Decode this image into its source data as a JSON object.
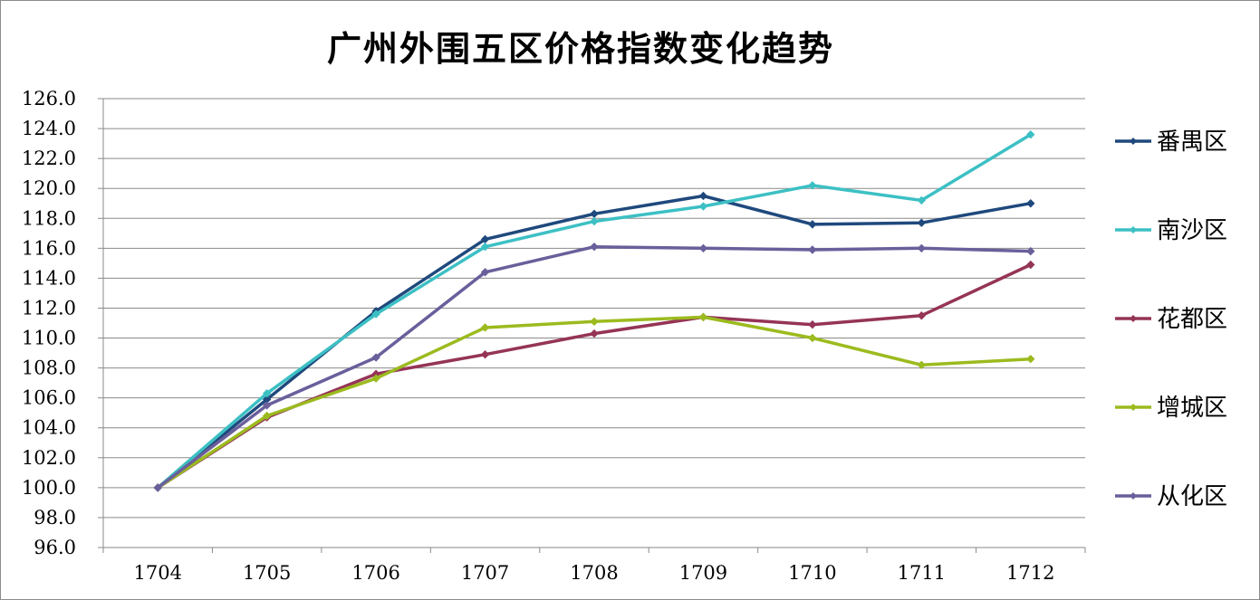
{
  "chart_data": {
    "type": "line",
    "title": "广州外围五区价格指数变化趋势",
    "xlabel": "",
    "ylabel": "",
    "categories": [
      "1704",
      "1705",
      "1706",
      "1707",
      "1708",
      "1709",
      "1710",
      "1711",
      "1712"
    ],
    "ylim": [
      96.0,
      126.0
    ],
    "ytick_step": 2.0,
    "ytick_decimals": 1,
    "grid": true,
    "legend_position": "right",
    "series": [
      {
        "name": "番禺区",
        "color": "#1f497d",
        "values": [
          100.0,
          105.9,
          111.8,
          116.6,
          118.3,
          119.5,
          117.6,
          117.7,
          119.0
        ]
      },
      {
        "name": "南沙区",
        "color": "#3cc0c4",
        "values": [
          100.0,
          106.3,
          111.6,
          116.1,
          117.8,
          118.8,
          120.2,
          119.2,
          123.6
        ]
      },
      {
        "name": "花都区",
        "color": "#953456",
        "values": [
          100.0,
          104.7,
          107.6,
          108.9,
          110.3,
          111.4,
          110.9,
          111.5,
          114.9
        ]
      },
      {
        "name": "增城区",
        "color": "#9bbb1e",
        "values": [
          100.0,
          104.8,
          107.3,
          110.7,
          111.1,
          111.4,
          110.0,
          108.2,
          108.6
        ]
      },
      {
        "name": "从化区",
        "color": "#6a5f9b",
        "values": [
          100.0,
          105.5,
          108.7,
          114.4,
          116.1,
          116.0,
          115.9,
          116.0,
          115.8
        ]
      }
    ]
  }
}
